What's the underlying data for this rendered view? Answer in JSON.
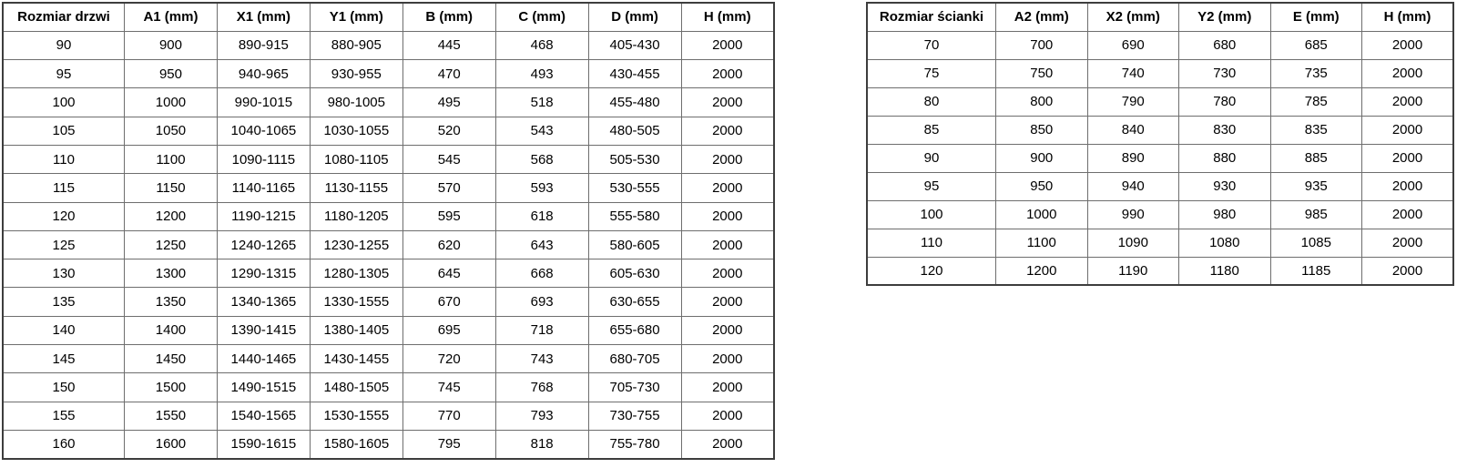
{
  "colors": {
    "background": "#ffffff",
    "text": "#000000",
    "border_inner": "#6e6e6e",
    "border_outer": "#3d3d3d"
  },
  "tables": [
    {
      "name": "door-size-table",
      "headers": [
        "Rozmiar drzwi",
        "A1 (mm)",
        "X1 (mm)",
        "Y1 (mm)",
        "B (mm)",
        "C (mm)",
        "D (mm)",
        "H (mm)"
      ],
      "rows": [
        [
          "90",
          "900",
          "890-915",
          "880-905",
          "445",
          "468",
          "405-430",
          "2000"
        ],
        [
          "95",
          "950",
          "940-965",
          "930-955",
          "470",
          "493",
          "430-455",
          "2000"
        ],
        [
          "100",
          "1000",
          "990-1015",
          "980-1005",
          "495",
          "518",
          "455-480",
          "2000"
        ],
        [
          "105",
          "1050",
          "1040-1065",
          "1030-1055",
          "520",
          "543",
          "480-505",
          "2000"
        ],
        [
          "110",
          "1100",
          "1090-1115",
          "1080-1105",
          "545",
          "568",
          "505-530",
          "2000"
        ],
        [
          "115",
          "1150",
          "1140-1165",
          "1130-1155",
          "570",
          "593",
          "530-555",
          "2000"
        ],
        [
          "120",
          "1200",
          "1190-1215",
          "1180-1205",
          "595",
          "618",
          "555-580",
          "2000"
        ],
        [
          "125",
          "1250",
          "1240-1265",
          "1230-1255",
          "620",
          "643",
          "580-605",
          "2000"
        ],
        [
          "130",
          "1300",
          "1290-1315",
          "1280-1305",
          "645",
          "668",
          "605-630",
          "2000"
        ],
        [
          "135",
          "1350",
          "1340-1365",
          "1330-1555",
          "670",
          "693",
          "630-655",
          "2000"
        ],
        [
          "140",
          "1400",
          "1390-1415",
          "1380-1405",
          "695",
          "718",
          "655-680",
          "2000"
        ],
        [
          "145",
          "1450",
          "1440-1465",
          "1430-1455",
          "720",
          "743",
          "680-705",
          "2000"
        ],
        [
          "150",
          "1500",
          "1490-1515",
          "1480-1505",
          "745",
          "768",
          "705-730",
          "2000"
        ],
        [
          "155",
          "1550",
          "1540-1565",
          "1530-1555",
          "770",
          "793",
          "730-755",
          "2000"
        ],
        [
          "160",
          "1600",
          "1590-1615",
          "1580-1605",
          "795",
          "818",
          "755-780",
          "2000"
        ]
      ]
    },
    {
      "name": "wall-size-table",
      "headers": [
        "Rozmiar ścianki",
        "A2 (mm)",
        "X2 (mm)",
        "Y2 (mm)",
        "E (mm)",
        "H (mm)"
      ],
      "rows": [
        [
          "70",
          "700",
          "690",
          "680",
          "685",
          "2000"
        ],
        [
          "75",
          "750",
          "740",
          "730",
          "735",
          "2000"
        ],
        [
          "80",
          "800",
          "790",
          "780",
          "785",
          "2000"
        ],
        [
          "85",
          "850",
          "840",
          "830",
          "835",
          "2000"
        ],
        [
          "90",
          "900",
          "890",
          "880",
          "885",
          "2000"
        ],
        [
          "95",
          "950",
          "940",
          "930",
          "935",
          "2000"
        ],
        [
          "100",
          "1000",
          "990",
          "980",
          "985",
          "2000"
        ],
        [
          "110",
          "1100",
          "1090",
          "1080",
          "1085",
          "2000"
        ],
        [
          "120",
          "1200",
          "1190",
          "1180",
          "1185",
          "2000"
        ]
      ]
    }
  ]
}
